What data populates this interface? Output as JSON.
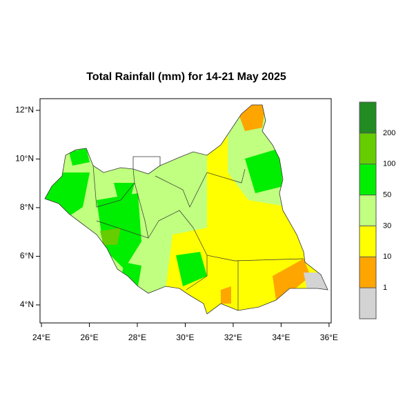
{
  "map": {
    "title": "Total Rainfall (mm) for 14-21 May 2025",
    "lonlim": [
      23.94,
      36.09
    ],
    "latlim": [
      3.26,
      12.48
    ],
    "lon_ticks": [
      {
        "value": 24,
        "label": "24°E"
      },
      {
        "value": 26,
        "label": "26°E"
      },
      {
        "value": 28,
        "label": "28°E"
      },
      {
        "value": 30,
        "label": "30°E"
      },
      {
        "value": 32,
        "label": "32°E"
      },
      {
        "value": 34,
        "label": "34°E"
      },
      {
        "value": 36,
        "label": "36°E"
      }
    ],
    "lat_ticks": [
      {
        "value": 4,
        "label": "4°N"
      },
      {
        "value": 6,
        "label": "6°N"
      },
      {
        "value": 8,
        "label": "8°N"
      },
      {
        "value": 10,
        "label": "10°N"
      },
      {
        "value": 12,
        "label": "12°N"
      }
    ],
    "legend": {
      "bins": [
        1,
        10,
        30,
        50,
        100,
        200
      ],
      "colors": [
        "#d3d3d3",
        "#ffa500",
        "#ffff00",
        "#c0ff80",
        "#00ee00",
        "#66cd00",
        "#228b22"
      ]
    }
  }
}
